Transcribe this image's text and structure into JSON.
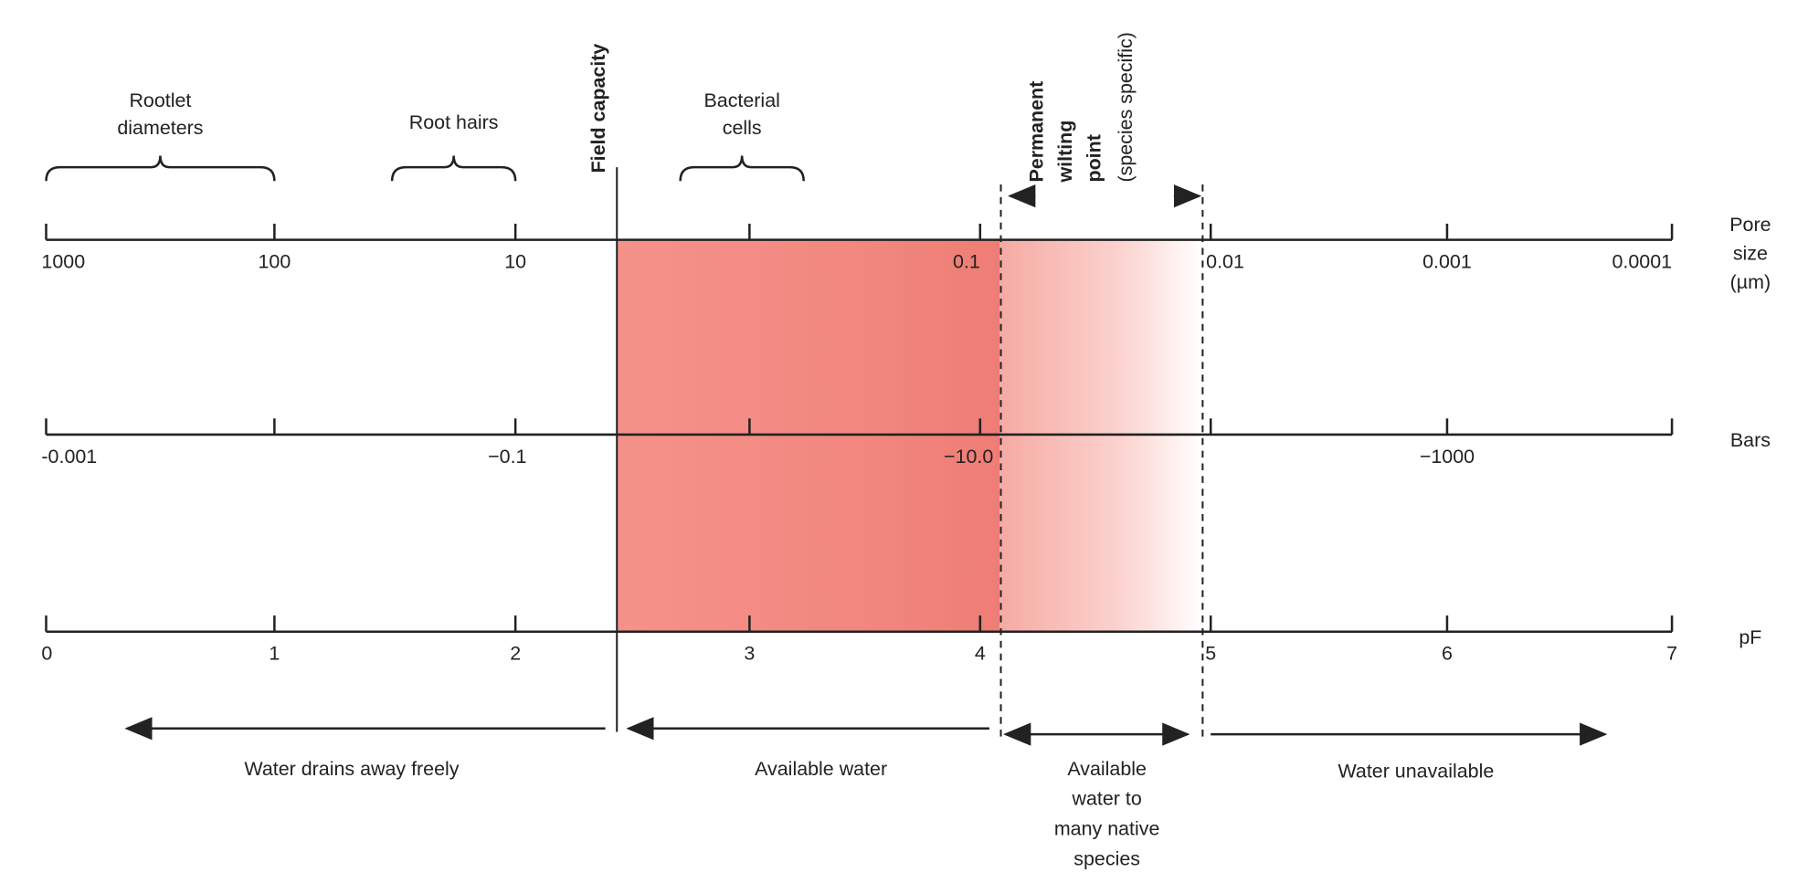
{
  "brackets": [
    {
      "label": [
        "Rootlet",
        "diameters"
      ]
    },
    {
      "label": [
        "Root hairs"
      ]
    },
    {
      "label": [
        "Bacterial",
        "cells"
      ]
    }
  ],
  "field_capacity": "Field capacity",
  "wilting_point": {
    "title": [
      "Permanent",
      "wilting",
      "point"
    ],
    "note": "(species specific)"
  },
  "axes": [
    {
      "name": [
        "Pore",
        "size",
        "(µm)"
      ],
      "labels": [
        "1000",
        "100",
        "10",
        "0.1",
        "0.01",
        "0.001",
        "0.0001"
      ]
    },
    {
      "name": [
        "Bars"
      ],
      "labels": [
        "-0.001",
        "−0.1",
        "−10.0",
        "−1000"
      ]
    },
    {
      "name": [
        "pF"
      ],
      "labels": [
        "0",
        "1",
        "2",
        "3",
        "4",
        "5",
        "6",
        "7"
      ]
    }
  ],
  "zones": [
    {
      "label": [
        "Water drains away freely"
      ]
    },
    {
      "label": [
        "Available water"
      ]
    },
    {
      "label": [
        "Available",
        "water to",
        "many native",
        "species"
      ]
    },
    {
      "label": [
        "Water unavailable"
      ]
    }
  ]
}
